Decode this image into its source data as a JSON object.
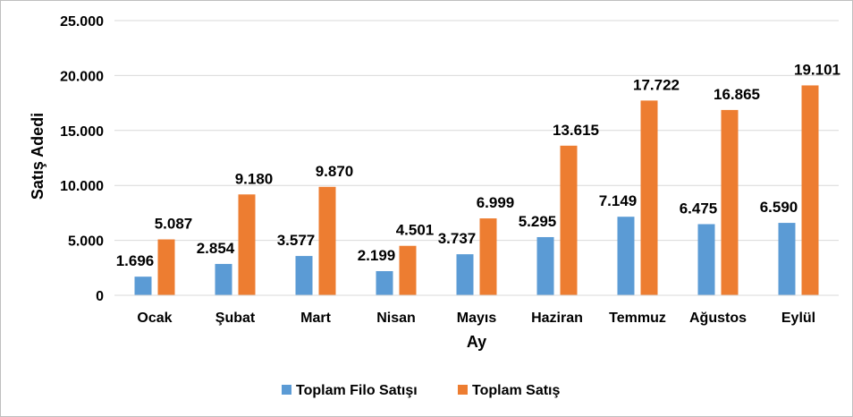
{
  "chart_data": {
    "type": "bar",
    "categories": [
      "Ocak",
      "Şubat",
      "Mart",
      "Nisan",
      "Mayıs",
      "Haziran",
      "Temmuz",
      "Ağustos",
      "Eylül"
    ],
    "series": [
      {
        "name": "Toplam Filo Satışı",
        "color": "#5b9bd5",
        "values": [
          1696,
          2854,
          3577,
          2199,
          3737,
          5295,
          7149,
          6475,
          6590
        ],
        "labels": [
          "1.696",
          "2.854",
          "3.577",
          "2.199",
          "3.737",
          "5.295",
          "7.149",
          "6.475",
          "6.590"
        ]
      },
      {
        "name": "Toplam Satış",
        "color": "#ed7d31",
        "values": [
          5087,
          9180,
          9870,
          4501,
          6999,
          13615,
          17722,
          16865,
          19101
        ],
        "labels": [
          "5.087",
          "9.180",
          "9.870",
          "4.501",
          "6.999",
          "13.615",
          "17.722",
          "16.865",
          "19.101"
        ]
      }
    ],
    "xlabel": "Ay",
    "ylabel": "Satış Adedi",
    "ylim": [
      0,
      25000
    ],
    "yticks": [
      0,
      5000,
      10000,
      15000,
      20000,
      25000
    ],
    "ytick_labels": [
      "0",
      "5.000",
      "10.000",
      "15.000",
      "20.000",
      "25.000"
    ],
    "grid": true,
    "legend_position": "bottom"
  }
}
